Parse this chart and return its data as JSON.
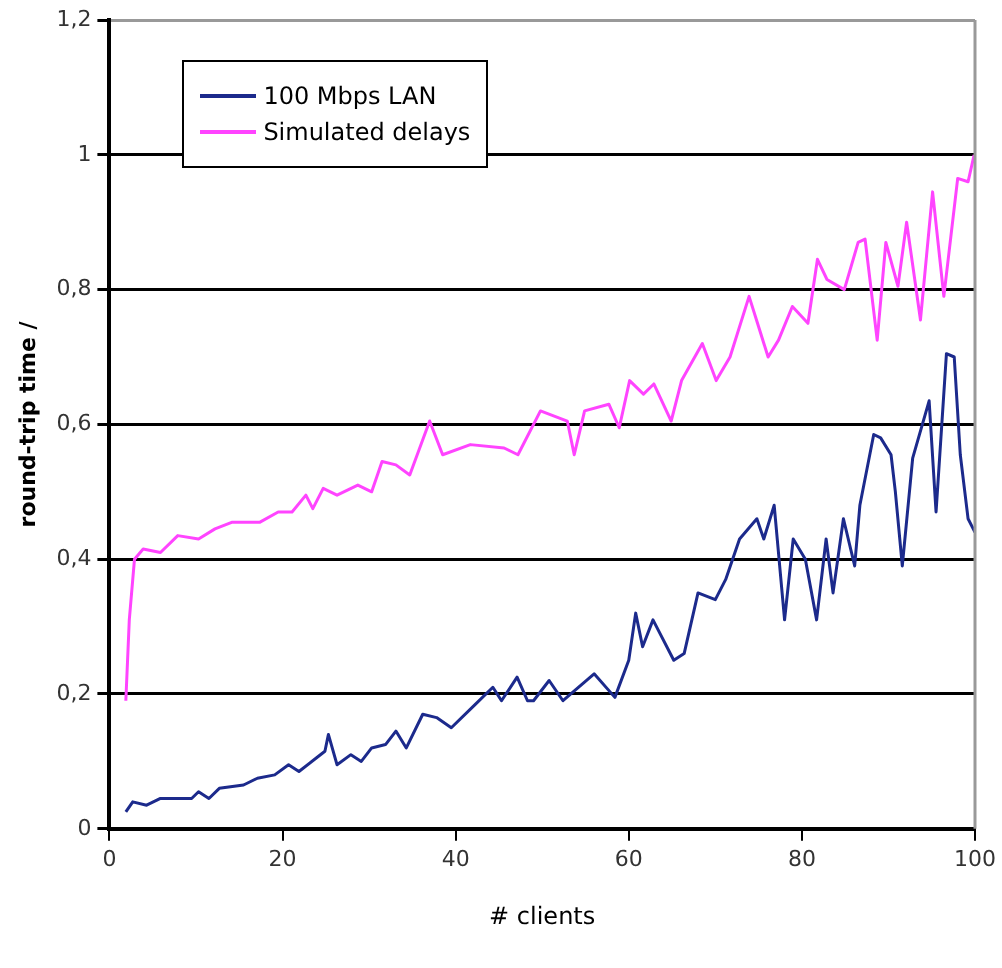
{
  "chart_data": {
    "type": "line",
    "xlabel": "# clients",
    "ylabel": "round-trip time /",
    "xlim": [
      0,
      100
    ],
    "xticks": [
      0,
      20,
      40,
      60,
      80,
      100
    ],
    "ylim": [
      0,
      1.2
    ],
    "yticks": [
      0,
      {
        "value": 0.2,
        "label": "0,2"
      },
      {
        "value": 0.4,
        "label": "0,4"
      },
      {
        "value": 0.6,
        "label": "0,6"
      },
      {
        "value": 0.8,
        "label": "0,8"
      },
      1,
      {
        "value": 1.2,
        "label": "1,2"
      }
    ],
    "grid": "y",
    "legend": "top left",
    "marker": "none",
    "line_style": "solid",
    "series": [
      {
        "name": "100 Mbps LAN",
        "color": "#1c2a8c",
        "x": [
          1.9,
          2.7,
          4.3,
          5.9,
          9.5,
          10.3,
          11.5,
          12.7,
          15.5,
          17.1,
          19.1,
          20.7,
          21.9,
          23.9,
          24.9,
          25.3,
          26.3,
          27.9,
          29.1,
          30.3,
          31.9,
          33.1,
          34.3,
          36.2,
          37.8,
          39.5,
          42.3,
          44.3,
          45.3,
          47.1,
          48.3,
          49,
          50.8,
          52.4,
          56,
          58.4,
          60,
          60.8,
          61.6,
          62.8,
          65.2,
          66.4,
          68,
          70,
          71.2,
          72.8,
          74.8,
          75.6,
          76.8,
          78,
          79,
          80.4,
          81.7,
          82.8,
          83.6,
          84.8,
          86.1,
          86.7,
          88.3,
          89.1,
          90.3,
          90.8,
          91.6,
          92.8,
          94.7,
          95.5,
          96.7,
          97.6,
          98.3,
          99.2,
          100
        ],
        "values": [
          0.025,
          0.04,
          0.035,
          0.045,
          0.045,
          0.055,
          0.045,
          0.06,
          0.065,
          0.075,
          0.08,
          0.095,
          0.085,
          0.105,
          0.115,
          0.14,
          0.095,
          0.11,
          0.1,
          0.12,
          0.125,
          0.145,
          0.12,
          0.17,
          0.165,
          0.15,
          0.185,
          0.21,
          0.19,
          0.225,
          0.19,
          0.19,
          0.22,
          0.19,
          0.23,
          0.195,
          0.25,
          0.32,
          0.27,
          0.31,
          0.25,
          0.26,
          0.35,
          0.34,
          0.37,
          0.43,
          0.46,
          0.43,
          0.48,
          0.31,
          0.43,
          0.4,
          0.31,
          0.43,
          0.35,
          0.46,
          0.39,
          0.48,
          0.585,
          0.58,
          0.555,
          0.5,
          0.39,
          0.55,
          0.635,
          0.47,
          0.705,
          0.7,
          0.555,
          0.46,
          0.44
        ]
      },
      {
        "name": "Simulated delays",
        "color": "#ff44ff",
        "x": [
          1.9,
          2.3,
          2.9,
          3.9,
          5.9,
          7.9,
          10.3,
          12.2,
          14.2,
          17.4,
          19.5,
          21.1,
          22.7,
          23.5,
          24.7,
          26.3,
          28.7,
          30.3,
          31.5,
          33.1,
          34.7,
          37,
          38.5,
          41.7,
          45.6,
          47.2,
          49.8,
          52.9,
          53.7,
          54.9,
          57.7,
          58.9,
          60.1,
          61.7,
          62.9,
          64.9,
          66.1,
          68.5,
          70.1,
          71.7,
          73.9,
          76.1,
          77.3,
          78.9,
          80.7,
          81.8,
          82.9,
          84.9,
          86.5,
          87.3,
          88.7,
          89.7,
          91.1,
          92.1,
          93.7,
          95.1,
          96.4,
          98,
          99.2,
          99.9
        ],
        "values": [
          0.19,
          0.31,
          0.4,
          0.415,
          0.41,
          0.435,
          0.43,
          0.445,
          0.455,
          0.455,
          0.47,
          0.47,
          0.495,
          0.475,
          0.505,
          0.495,
          0.51,
          0.5,
          0.545,
          0.54,
          0.525,
          0.605,
          0.555,
          0.57,
          0.565,
          0.555,
          0.62,
          0.605,
          0.555,
          0.62,
          0.63,
          0.595,
          0.665,
          0.645,
          0.66,
          0.605,
          0.665,
          0.72,
          0.665,
          0.7,
          0.79,
          0.7,
          0.725,
          0.775,
          0.75,
          0.845,
          0.815,
          0.8,
          0.87,
          0.875,
          0.725,
          0.87,
          0.805,
          0.9,
          0.755,
          0.945,
          0.79,
          0.965,
          0.96,
          1.0
        ]
      }
    ]
  }
}
